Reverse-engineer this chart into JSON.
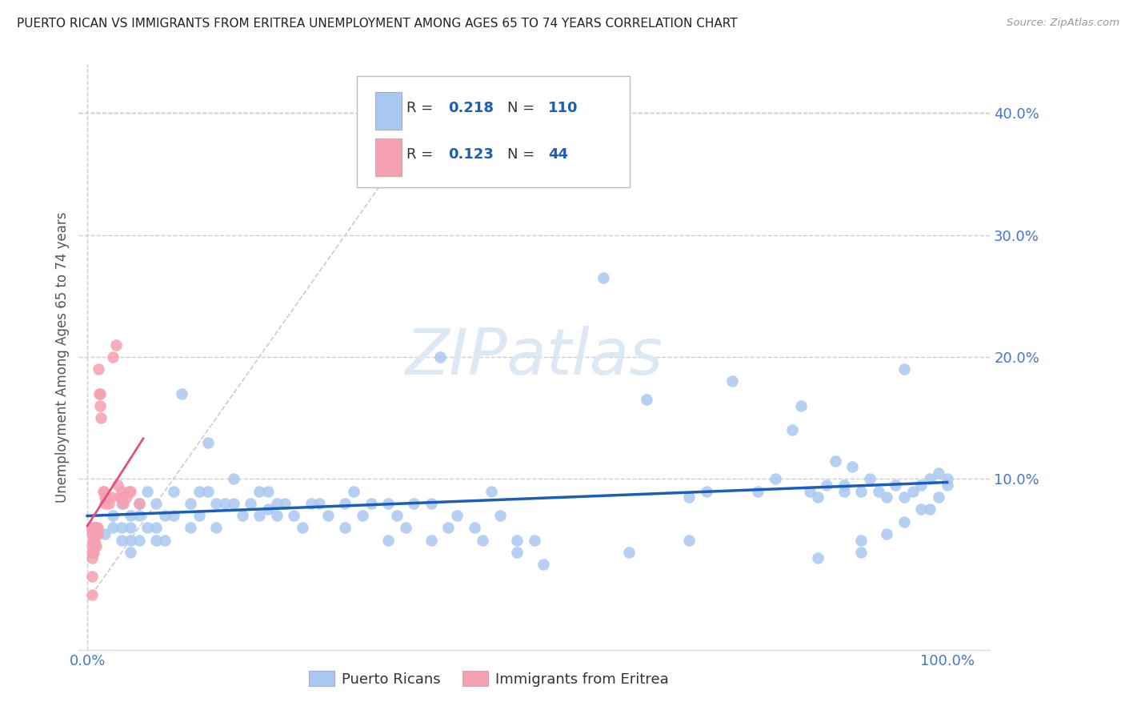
{
  "title": "PUERTO RICAN VS IMMIGRANTS FROM ERITREA UNEMPLOYMENT AMONG AGES 65 TO 74 YEARS CORRELATION CHART",
  "source": "Source: ZipAtlas.com",
  "ylabel": "Unemployment Among Ages 65 to 74 years",
  "legend_labels": [
    "Puerto Ricans",
    "Immigrants from Eritrea"
  ],
  "blue_R": "0.218",
  "blue_N": "110",
  "pink_R": "0.123",
  "pink_N": "44",
  "blue_color": "#a8c8f0",
  "pink_color": "#f5a0b0",
  "blue_line_color": "#1a5eb8",
  "pink_line_color": "#e05080",
  "axis_tick_color": "#4477cc",
  "text_color": "#333333",
  "grid_color": "#cccccc",
  "watermark": "ZIPatlas",
  "blue_x": [
    0.02,
    0.03,
    0.03,
    0.04,
    0.04,
    0.04,
    0.05,
    0.05,
    0.05,
    0.05,
    0.06,
    0.06,
    0.06,
    0.07,
    0.07,
    0.08,
    0.08,
    0.08,
    0.09,
    0.09,
    0.1,
    0.1,
    0.11,
    0.12,
    0.12,
    0.13,
    0.13,
    0.14,
    0.15,
    0.15,
    0.16,
    0.17,
    0.17,
    0.18,
    0.19,
    0.2,
    0.2,
    0.21,
    0.22,
    0.22,
    0.23,
    0.24,
    0.25,
    0.26,
    0.27,
    0.28,
    0.3,
    0.3,
    0.31,
    0.32,
    0.33,
    0.35,
    0.36,
    0.37,
    0.38,
    0.4,
    0.4,
    0.41,
    0.43,
    0.45,
    0.46,
    0.47,
    0.48,
    0.5,
    0.52,
    0.53,
    0.6,
    0.65,
    0.7,
    0.72,
    0.75,
    0.78,
    0.8,
    0.82,
    0.83,
    0.84,
    0.85,
    0.86,
    0.87,
    0.88,
    0.88,
    0.89,
    0.9,
    0.9,
    0.91,
    0.92,
    0.93,
    0.93,
    0.94,
    0.95,
    0.95,
    0.96,
    0.97,
    0.97,
    0.98,
    0.98,
    0.99,
    0.99,
    1.0,
    1.0,
    0.14,
    0.21,
    0.35,
    0.42,
    0.5,
    0.63,
    0.7,
    0.85,
    0.9,
    0.95
  ],
  "blue_y": [
    0.055,
    0.07,
    0.06,
    0.05,
    0.08,
    0.06,
    0.05,
    0.07,
    0.04,
    0.06,
    0.07,
    0.08,
    0.05,
    0.06,
    0.09,
    0.05,
    0.08,
    0.06,
    0.07,
    0.05,
    0.09,
    0.07,
    0.17,
    0.08,
    0.06,
    0.09,
    0.07,
    0.09,
    0.06,
    0.08,
    0.08,
    0.1,
    0.08,
    0.07,
    0.08,
    0.09,
    0.07,
    0.09,
    0.08,
    0.07,
    0.08,
    0.07,
    0.06,
    0.08,
    0.08,
    0.07,
    0.08,
    0.06,
    0.09,
    0.07,
    0.08,
    0.05,
    0.07,
    0.06,
    0.08,
    0.08,
    0.05,
    0.2,
    0.07,
    0.06,
    0.05,
    0.09,
    0.07,
    0.05,
    0.05,
    0.03,
    0.265,
    0.165,
    0.085,
    0.09,
    0.18,
    0.09,
    0.1,
    0.14,
    0.16,
    0.09,
    0.085,
    0.095,
    0.115,
    0.095,
    0.09,
    0.11,
    0.05,
    0.09,
    0.1,
    0.09,
    0.085,
    0.055,
    0.095,
    0.085,
    0.065,
    0.09,
    0.095,
    0.075,
    0.1,
    0.075,
    0.085,
    0.105,
    0.095,
    0.1,
    0.13,
    0.075,
    0.08,
    0.06,
    0.04,
    0.04,
    0.05,
    0.035,
    0.04,
    0.19
  ],
  "pink_x": [
    0.005,
    0.005,
    0.005,
    0.005,
    0.005,
    0.005,
    0.005,
    0.005,
    0.006,
    0.006,
    0.007,
    0.007,
    0.008,
    0.008,
    0.009,
    0.009,
    0.01,
    0.01,
    0.01,
    0.012,
    0.012,
    0.013,
    0.014,
    0.015,
    0.015,
    0.016,
    0.018,
    0.019,
    0.02,
    0.02,
    0.022,
    0.025,
    0.028,
    0.03,
    0.033,
    0.035,
    0.038,
    0.04,
    0.04,
    0.042,
    0.045,
    0.048,
    0.05,
    0.06
  ],
  "pink_y": [
    0.058,
    0.06,
    0.055,
    0.045,
    0.04,
    0.035,
    0.02,
    0.005,
    0.055,
    0.05,
    0.04,
    0.06,
    0.05,
    0.045,
    0.06,
    0.055,
    0.06,
    0.055,
    0.045,
    0.06,
    0.055,
    0.19,
    0.17,
    0.16,
    0.17,
    0.15,
    0.09,
    0.09,
    0.085,
    0.08,
    0.085,
    0.08,
    0.085,
    0.2,
    0.21,
    0.095,
    0.085,
    0.085,
    0.09,
    0.08,
    0.085,
    0.09,
    0.09,
    0.08
  ]
}
